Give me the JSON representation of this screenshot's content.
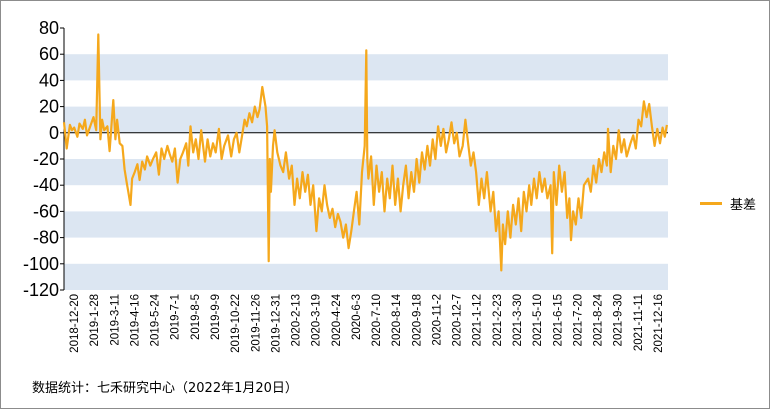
{
  "chart_data": {
    "type": "line",
    "series": [
      {
        "name": "基差",
        "color": "#f5a81c",
        "points": [
          [
            "2018-12-20",
            8
          ],
          [
            "2018-12-25",
            -12
          ],
          [
            "2018-12-31",
            6
          ],
          [
            "2019-1-4",
            2
          ],
          [
            "2019-1-8",
            4
          ],
          [
            "2019-1-14",
            -3
          ],
          [
            "2019-1-18",
            7
          ],
          [
            "2019-1-24",
            3
          ],
          [
            "2019-1-28",
            10
          ],
          [
            "2019-2-1",
            -2
          ],
          [
            "2019-2-13",
            12
          ],
          [
            "2019-2-18",
            2
          ],
          [
            "2019-2-22",
            75
          ],
          [
            "2019-2-26",
            -5
          ],
          [
            "2019-3-1",
            10
          ],
          [
            "2019-3-5",
            2
          ],
          [
            "2019-3-11",
            5
          ],
          [
            "2019-3-15",
            -14
          ],
          [
            "2019-3-19",
            8
          ],
          [
            "2019-3-22",
            25
          ],
          [
            "2019-3-26",
            -5
          ],
          [
            "2019-3-29",
            10
          ],
          [
            "2019-4-3",
            -8
          ],
          [
            "2019-4-8",
            -10
          ],
          [
            "2019-4-12",
            -28
          ],
          [
            "2019-4-16",
            -38
          ],
          [
            "2019-4-19",
            -45
          ],
          [
            "2019-4-23",
            -55
          ],
          [
            "2019-4-26",
            -35
          ],
          [
            "2019-5-1",
            -30
          ],
          [
            "2019-5-6",
            -24
          ],
          [
            "2019-5-10",
            -36
          ],
          [
            "2019-5-15",
            -22
          ],
          [
            "2019-5-20",
            -28
          ],
          [
            "2019-5-24",
            -18
          ],
          [
            "2019-5-30",
            -25
          ],
          [
            "2019-6-4",
            -20
          ],
          [
            "2019-6-10",
            -15
          ],
          [
            "2019-6-15",
            -32
          ],
          [
            "2019-6-20",
            -12
          ],
          [
            "2019-6-25",
            -20
          ],
          [
            "2019-7-1",
            -10
          ],
          [
            "2019-7-5",
            -16
          ],
          [
            "2019-7-10",
            -22
          ],
          [
            "2019-7-15",
            -12
          ],
          [
            "2019-7-20",
            -38
          ],
          [
            "2019-7-25",
            -20
          ],
          [
            "2019-7-30",
            -15
          ],
          [
            "2019-8-5",
            -8
          ],
          [
            "2019-8-9",
            -25
          ],
          [
            "2019-8-13",
            5
          ],
          [
            "2019-8-18",
            -15
          ],
          [
            "2019-8-23",
            -5
          ],
          [
            "2019-8-28",
            -20
          ],
          [
            "2019-9-2",
            2
          ],
          [
            "2019-9-9",
            -22
          ],
          [
            "2019-9-14",
            -5
          ],
          [
            "2019-9-19",
            -18
          ],
          [
            "2019-9-24",
            -8
          ],
          [
            "2019-9-29",
            -15
          ],
          [
            "2019-10-5",
            3
          ],
          [
            "2019-10-10",
            -20
          ],
          [
            "2019-10-15",
            -10
          ],
          [
            "2019-10-22",
            -2
          ],
          [
            "2019-10-28",
            -18
          ],
          [
            "2019-11-2",
            -5
          ],
          [
            "2019-11-7",
            0
          ],
          [
            "2019-11-12",
            -15
          ],
          [
            "2019-11-17",
            -3
          ],
          [
            "2019-11-22",
            10
          ],
          [
            "2019-11-26",
            5
          ],
          [
            "2019-12-1",
            15
          ],
          [
            "2019-12-6",
            8
          ],
          [
            "2019-12-11",
            20
          ],
          [
            "2019-12-16",
            12
          ],
          [
            "2019-12-20",
            18
          ],
          [
            "2019-12-25",
            35
          ],
          [
            "2019-12-31",
            20
          ],
          [
            "2020-1-3",
            5
          ],
          [
            "2020-1-6",
            -98
          ],
          [
            "2020-1-8",
            -20
          ],
          [
            "2020-1-10",
            -45
          ],
          [
            "2020-1-14",
            -10
          ],
          [
            "2020-1-17",
            2
          ],
          [
            "2020-1-22",
            -15
          ],
          [
            "2020-1-28",
            -25
          ],
          [
            "2020-2-2",
            -30
          ],
          [
            "2020-2-7",
            -15
          ],
          [
            "2020-2-13",
            -35
          ],
          [
            "2020-2-18",
            -25
          ],
          [
            "2020-2-23",
            -55
          ],
          [
            "2020-2-28",
            -35
          ],
          [
            "2020-3-4",
            -50
          ],
          [
            "2020-3-9",
            -30
          ],
          [
            "2020-3-14",
            -45
          ],
          [
            "2020-3-19",
            -32
          ],
          [
            "2020-3-24",
            -55
          ],
          [
            "2020-3-29",
            -40
          ],
          [
            "2020-4-4",
            -75
          ],
          [
            "2020-4-9",
            -50
          ],
          [
            "2020-4-14",
            -60
          ],
          [
            "2020-4-19",
            -40
          ],
          [
            "2020-4-24",
            -55
          ],
          [
            "2020-4-29",
            -65
          ],
          [
            "2020-5-4",
            -58
          ],
          [
            "2020-5-9",
            -72
          ],
          [
            "2020-5-14",
            -62
          ],
          [
            "2020-5-19",
            -68
          ],
          [
            "2020-5-24",
            -80
          ],
          [
            "2020-5-29",
            -70
          ],
          [
            "2020-6-3",
            -88
          ],
          [
            "2020-6-8",
            -75
          ],
          [
            "2020-6-13",
            -60
          ],
          [
            "2020-6-18",
            -45
          ],
          [
            "2020-6-23",
            -70
          ],
          [
            "2020-6-28",
            -30
          ],
          [
            "2020-7-3",
            -10
          ],
          [
            "2020-7-6",
            63
          ],
          [
            "2020-7-8",
            -20
          ],
          [
            "2020-7-10",
            -35
          ],
          [
            "2020-7-15",
            -18
          ],
          [
            "2020-7-20",
            -55
          ],
          [
            "2020-7-25",
            -25
          ],
          [
            "2020-7-30",
            -45
          ],
          [
            "2020-8-4",
            -30
          ],
          [
            "2020-8-9",
            -60
          ],
          [
            "2020-8-14",
            -35
          ],
          [
            "2020-8-19",
            -50
          ],
          [
            "2020-8-24",
            -25
          ],
          [
            "2020-8-29",
            -55
          ],
          [
            "2020-9-3",
            -35
          ],
          [
            "2020-9-8",
            -60
          ],
          [
            "2020-9-13",
            -40
          ],
          [
            "2020-9-18",
            -25
          ],
          [
            "2020-9-23",
            -50
          ],
          [
            "2020-9-28",
            -30
          ],
          [
            "2020-10-3",
            -45
          ],
          [
            "2020-10-8",
            -20
          ],
          [
            "2020-10-13",
            -38
          ],
          [
            "2020-10-18",
            -15
          ],
          [
            "2020-10-23",
            -28
          ],
          [
            "2020-10-28",
            -10
          ],
          [
            "2020-11-2",
            -25
          ],
          [
            "2020-11-7",
            -5
          ],
          [
            "2020-11-12",
            -20
          ],
          [
            "2020-11-17",
            5
          ],
          [
            "2020-11-22",
            -10
          ],
          [
            "2020-11-27",
            3
          ],
          [
            "2020-12-2",
            -15
          ],
          [
            "2020-12-7",
            -5
          ],
          [
            "2020-12-12",
            8
          ],
          [
            "2020-12-17",
            -8
          ],
          [
            "2020-12-22",
            0
          ],
          [
            "2020-12-27",
            -18
          ],
          [
            "2021-1-2",
            -10
          ],
          [
            "2021-1-7",
            10
          ],
          [
            "2021-1-12",
            -8
          ],
          [
            "2021-1-17",
            -25
          ],
          [
            "2021-1-22",
            -15
          ],
          [
            "2021-1-27",
            -30
          ],
          [
            "2021-2-1",
            -55
          ],
          [
            "2021-2-6",
            -35
          ],
          [
            "2021-2-11",
            -50
          ],
          [
            "2021-2-16",
            -30
          ],
          [
            "2021-2-23",
            -60
          ],
          [
            "2021-2-28",
            -45
          ],
          [
            "2021-3-5",
            -75
          ],
          [
            "2021-3-10",
            -60
          ],
          [
            "2021-3-15",
            -105
          ],
          [
            "2021-3-18",
            -70
          ],
          [
            "2021-3-22",
            -85
          ],
          [
            "2021-3-27",
            -60
          ],
          [
            "2021-4-1",
            -80
          ],
          [
            "2021-4-6",
            -55
          ],
          [
            "2021-4-11",
            -70
          ],
          [
            "2021-4-16",
            -50
          ],
          [
            "2021-4-21",
            -75
          ],
          [
            "2021-4-26",
            -45
          ],
          [
            "2021-5-1",
            -60
          ],
          [
            "2021-5-6",
            -40
          ],
          [
            "2021-5-10",
            -55
          ],
          [
            "2021-5-15",
            -35
          ],
          [
            "2021-5-20",
            -50
          ],
          [
            "2021-5-25",
            -30
          ],
          [
            "2021-5-30",
            -45
          ],
          [
            "2021-6-4",
            -35
          ],
          [
            "2021-6-9",
            -50
          ],
          [
            "2021-6-15",
            -40
          ],
          [
            "2021-6-18",
            -92
          ],
          [
            "2021-6-21",
            -30
          ],
          [
            "2021-6-26",
            -55
          ],
          [
            "2021-7-1",
            -25
          ],
          [
            "2021-7-6",
            -45
          ],
          [
            "2021-7-11",
            -30
          ],
          [
            "2021-7-16",
            -65
          ],
          [
            "2021-7-20",
            -50
          ],
          [
            "2021-7-23",
            -82
          ],
          [
            "2021-7-27",
            -60
          ],
          [
            "2021-8-1",
            -70
          ],
          [
            "2021-8-6",
            -50
          ],
          [
            "2021-8-11",
            -65
          ],
          [
            "2021-8-16",
            -40
          ],
          [
            "2021-8-24",
            -35
          ],
          [
            "2021-8-29",
            -45
          ],
          [
            "2021-9-3",
            -25
          ],
          [
            "2021-9-8",
            -38
          ],
          [
            "2021-9-13",
            -20
          ],
          [
            "2021-9-18",
            -30
          ],
          [
            "2021-9-23",
            -15
          ],
          [
            "2021-9-28",
            -25
          ],
          [
            "2021-9-30",
            3
          ],
          [
            "2021-10-5",
            -30
          ],
          [
            "2021-10-10",
            -10
          ],
          [
            "2021-10-15",
            -20
          ],
          [
            "2021-10-20",
            2
          ],
          [
            "2021-10-25",
            -15
          ],
          [
            "2021-10-30",
            -5
          ],
          [
            "2021-11-4",
            -18
          ],
          [
            "2021-11-11",
            -8
          ],
          [
            "2021-11-16",
            -2
          ],
          [
            "2021-11-21",
            -12
          ],
          [
            "2021-11-26",
            10
          ],
          [
            "2021-12-1",
            5
          ],
          [
            "2021-12-6",
            24
          ],
          [
            "2021-12-11",
            12
          ],
          [
            "2021-12-16",
            22
          ],
          [
            "2021-12-21",
            5
          ],
          [
            "2021-12-26",
            -10
          ],
          [
            "2021-12-31",
            3
          ],
          [
            "2022-1-5",
            -8
          ],
          [
            "2022-1-10",
            4
          ],
          [
            "2022-1-14",
            -3
          ],
          [
            "2022-1-18",
            6
          ]
        ]
      }
    ],
    "x_tick_labels": [
      "2018-12-20",
      "2019-1-28",
      "2019-3-11",
      "2019-4-16",
      "2019-5-24",
      "2019-7-1",
      "2019-8-5",
      "2019-9-9",
      "2019-10-22",
      "2019-11-26",
      "2019-12-31",
      "2020-2-13",
      "2020-3-19",
      "2020-4-24",
      "2020-6-3",
      "2020-7-10",
      "2020-8-14",
      "2020-9-18",
      "2020-11-2",
      "2020-12-7",
      "2021-1-12",
      "2021-2-23",
      "2021-3-30",
      "2021-5-10",
      "2021-6-15",
      "2021-7-20",
      "2021-8-24",
      "2021-9-30",
      "2021-11-11",
      "2021-12-16"
    ],
    "xlim": [
      "2018-12-20",
      "2022-1-20"
    ],
    "y_ticks": [
      80,
      60,
      40,
      20,
      0,
      -20,
      -40,
      -60,
      -80,
      -100,
      -120
    ],
    "ylim": [
      -120,
      80
    ],
    "banded_background": true,
    "band_color": "#dce6f2",
    "legend_position": "right",
    "title": "",
    "xlabel": "",
    "ylabel": ""
  },
  "source_note": "数据统计：七禾研究中心（2022年1月20日）"
}
